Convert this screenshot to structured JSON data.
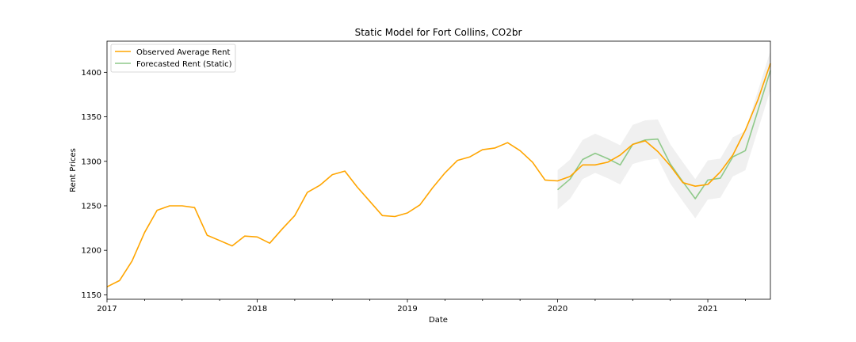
{
  "chart_data": {
    "type": "line",
    "title": "Static Model for Fort Collins, CO2br",
    "xlabel": "Date",
    "ylabel": "Rent Prices",
    "xlim": [
      "2017-01",
      "2021-06"
    ],
    "ylim": [
      1145,
      1435
    ],
    "grid": false,
    "legend_position": "top-left",
    "x_tick_labels": [
      "2017",
      "2018",
      "2019",
      "2020",
      "2021"
    ],
    "y_ticks": [
      1150,
      1200,
      1250,
      1300,
      1350,
      1400
    ],
    "y_tick_labels": [
      "1150",
      "1200",
      "1250",
      "1300",
      "1350",
      "1400"
    ],
    "series": [
      {
        "name": "Observed Average Rent",
        "color": "#FFA500",
        "x": [
          "2017-01",
          "2017-02",
          "2017-03",
          "2017-04",
          "2017-05",
          "2017-06",
          "2017-07",
          "2017-08",
          "2017-09",
          "2017-10",
          "2017-11",
          "2017-12",
          "2018-01",
          "2018-02",
          "2018-03",
          "2018-04",
          "2018-05",
          "2018-06",
          "2018-07",
          "2018-08",
          "2018-09",
          "2018-10",
          "2018-11",
          "2018-12",
          "2019-01",
          "2019-02",
          "2019-03",
          "2019-04",
          "2019-05",
          "2019-06",
          "2019-07",
          "2019-08",
          "2019-09",
          "2019-10",
          "2019-11",
          "2019-12",
          "2020-01",
          "2020-02",
          "2020-03",
          "2020-04",
          "2020-05",
          "2020-06",
          "2020-07",
          "2020-08",
          "2020-09",
          "2020-10",
          "2020-11",
          "2020-12",
          "2021-01",
          "2021-02",
          "2021-03",
          "2021-04",
          "2021-05",
          "2021-06"
        ],
        "values": [
          1159,
          1166,
          1188,
          1220,
          1245,
          1250,
          1250,
          1248,
          1217,
          1211,
          1205,
          1216,
          1215,
          1208,
          1224,
          1239,
          1265,
          1273,
          1285,
          1289,
          1271,
          1255,
          1239,
          1238,
          1242,
          1251,
          1270,
          1287,
          1301,
          1305,
          1313,
          1315,
          1321,
          1312,
          1299,
          1279,
          1278,
          1283,
          1296,
          1296,
          1299,
          1307,
          1319,
          1323,
          1311,
          1295,
          1276,
          1272,
          1274,
          1288,
          1307,
          1335,
          1369,
          1410
        ]
      },
      {
        "name": "Forecasted Rent (Static)",
        "color": "#8FC98A",
        "x": [
          "2020-01",
          "2020-02",
          "2020-03",
          "2020-04",
          "2020-05",
          "2020-06",
          "2020-07",
          "2020-08",
          "2020-09",
          "2020-10",
          "2020-11",
          "2020-12",
          "2021-01",
          "2021-02",
          "2021-03",
          "2021-04",
          "2021-05",
          "2021-06"
        ],
        "values": [
          1268,
          1280,
          1302,
          1309,
          1303,
          1296,
          1319,
          1324,
          1325,
          1297,
          1277,
          1258,
          1279,
          1281,
          1305,
          1312,
          1357,
          1402
        ],
        "ci_lower": [
          1246,
          1258,
          1280,
          1287,
          1281,
          1274,
          1297,
          1301,
          1303,
          1275,
          1255,
          1236,
          1257,
          1259,
          1283,
          1290,
          1335,
          1380
        ],
        "ci_upper": [
          1290,
          1302,
          1324,
          1331,
          1325,
          1318,
          1341,
          1346,
          1347,
          1319,
          1299,
          1280,
          1301,
          1303,
          1327,
          1334,
          1379,
          1424
        ],
        "ci_color": "#D3D3D3"
      }
    ]
  }
}
